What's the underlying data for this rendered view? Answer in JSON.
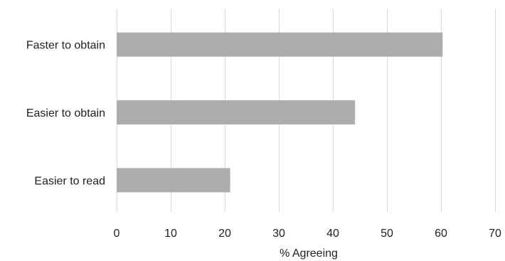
{
  "chart_data": {
    "type": "bar",
    "orientation": "horizontal",
    "categories": [
      "Faster to obtain",
      "Easier to obtain",
      "Easier to read"
    ],
    "values": [
      60.3,
      44.1,
      21.0
    ],
    "xlabel": "% Agreeing",
    "ylabel": "",
    "xlim": [
      0,
      70
    ],
    "xticks": [
      "0",
      "10",
      "20",
      "30",
      "40",
      "50",
      "60",
      "70"
    ],
    "grid": "vertical",
    "bar_color": "#adadaf",
    "grid_color": "#d9d9d9"
  }
}
